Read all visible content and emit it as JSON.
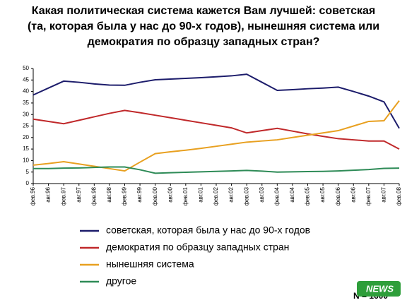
{
  "chart_data": {
    "type": "line",
    "title": [
      "Какая политическая система кажется Вам лучшей: советская",
      "(та, которая была у нас до 90-х годов), нынешняя система или",
      "демократия по образцу западных стран?"
    ],
    "categories": [
      "фев.96",
      "авг.96",
      "фев.97",
      "авг.97",
      "фев.98",
      "авг.98",
      "фев.99",
      "авг.99",
      "фев.00",
      "авг.00",
      "фев.01",
      "авг.01",
      "фев.02",
      "авг.02",
      "фев.03",
      "авг.03",
      "фев.04",
      "авг.04",
      "фев.05",
      "авг.05",
      "фев.06",
      "авг.06",
      "фев.07",
      "авг.07",
      "фев.08"
    ],
    "series": [
      {
        "name": "советская, которая была у нас до 90-х годов",
        "color": "#1c1c6b",
        "values": [
          38.5,
          41.5,
          44.5,
          44,
          43.3,
          42.8,
          42.7,
          44,
          45.1,
          45.4,
          45.7,
          46,
          46.4,
          46.8,
          47.5,
          44,
          40.5,
          40.8,
          41.2,
          41.5,
          41.9,
          40,
          38,
          35.5,
          24
        ]
      },
      {
        "name": "демократия по образцу западных стран",
        "color": "#c0282a",
        "values": [
          28,
          27,
          26,
          27.5,
          29,
          30.5,
          31.8,
          30.8,
          29.7,
          28.6,
          27.5,
          26.4,
          25.3,
          24.2,
          22,
          23,
          24,
          22.8,
          21.6,
          20.5,
          19.5,
          19,
          18.5,
          18.5,
          15
        ]
      },
      {
        "name": "нынешняя система",
        "color": "#e8a020",
        "values": [
          8,
          8.7,
          9.5,
          8.5,
          7.5,
          6.5,
          5.5,
          9.3,
          13,
          13.8,
          14.5,
          15.3,
          16.2,
          17.1,
          18,
          18.5,
          19,
          20,
          21,
          22,
          23,
          25,
          27,
          27.3,
          36
        ]
      },
      {
        "name": "другое",
        "color": "#2e8b57",
        "values": [
          6.5,
          6.5,
          6.7,
          6.8,
          7,
          7.2,
          7.2,
          6,
          4.5,
          4.7,
          4.9,
          5.1,
          5.3,
          5.5,
          5.7,
          5.4,
          5,
          5.1,
          5.2,
          5.3,
          5.5,
          5.8,
          6.1,
          6.6,
          6.7
        ]
      }
    ],
    "ylim": [
      0,
      50
    ],
    "yticks": [
      0,
      5,
      10,
      15,
      20,
      25,
      30,
      35,
      40,
      45,
      50
    ],
    "grid": false,
    "annotation": "N = 1600",
    "logo": "NEWS"
  }
}
